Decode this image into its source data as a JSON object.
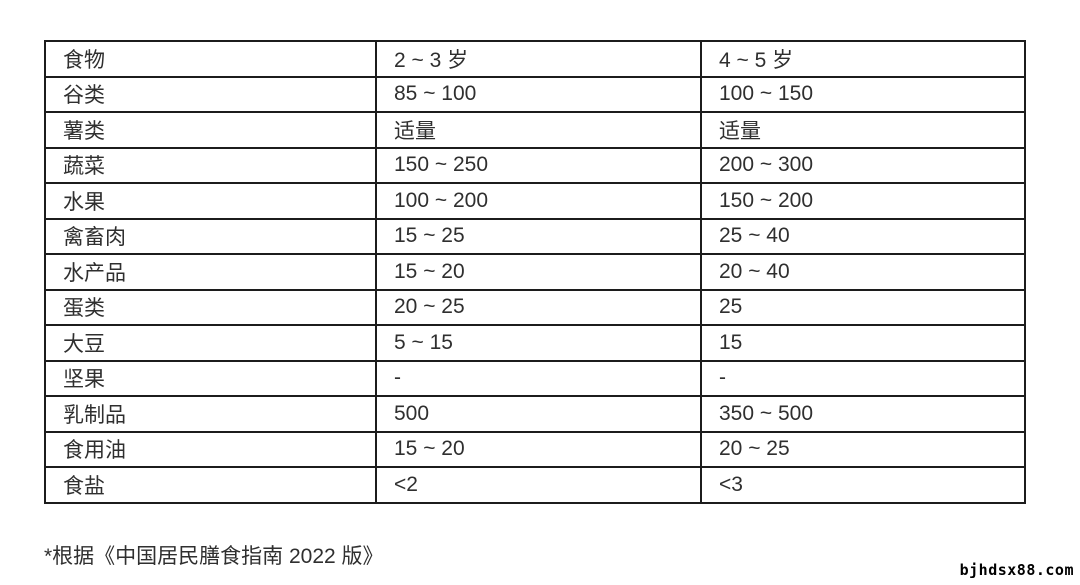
{
  "table": {
    "columns": [
      "食物",
      "2 ~ 3 岁",
      "4 ~ 5 岁"
    ],
    "rows": [
      [
        "谷类",
        "85 ~ 100",
        "100 ~ 150"
      ],
      [
        "薯类",
        "适量",
        "适量"
      ],
      [
        "蔬菜",
        "150 ~ 250",
        "200 ~ 300"
      ],
      [
        "水果",
        "100 ~ 200",
        "150 ~ 200"
      ],
      [
        "禽畜肉",
        "15 ~ 25",
        "25 ~ 40"
      ],
      [
        "水产品",
        "15 ~ 20",
        "20 ~ 40"
      ],
      [
        "蛋类",
        "20 ~ 25",
        "25"
      ],
      [
        "大豆",
        "5 ~ 15",
        "15"
      ],
      [
        "坚果",
        "-",
        "-"
      ],
      [
        "乳制品",
        "500",
        "350 ~ 500"
      ],
      [
        "食用油",
        "15 ~ 20",
        "20 ~ 25"
      ],
      [
        "食盐",
        "<2",
        "<3"
      ]
    ]
  },
  "footnote": "*根据《中国居民膳食指南 2022 版》",
  "watermark": "bjhdsx88.com",
  "colors": {
    "border": "#1c1c1c",
    "text": "#2f2f2f",
    "background": "#ffffff",
    "watermark_text": "#000000"
  }
}
